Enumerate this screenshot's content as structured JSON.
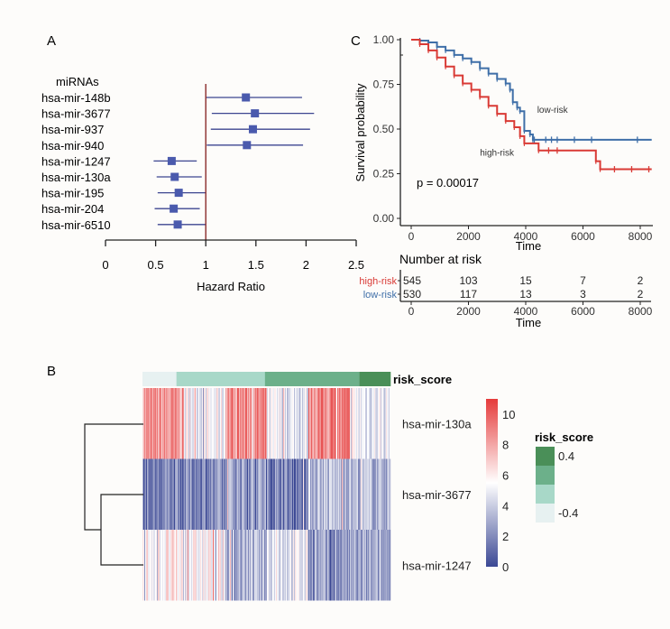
{
  "panels": {
    "a_label": "A",
    "b_label": "B",
    "c_label": "C"
  },
  "chart_data": [
    {
      "id": "forest",
      "type": "scatter",
      "subtype": "forest-plot",
      "header": "miRNAs",
      "xlabel": "Hazard Ratio",
      "xlim": [
        0,
        2.5
      ],
      "xticks": [
        0,
        0.5,
        1,
        1.5,
        2,
        2.5
      ],
      "xtick_labels": [
        "0",
        "0.5",
        "1",
        "1.5",
        "2",
        "2.5"
      ],
      "reference_line": 1,
      "colors": {
        "point": "#4a5aad",
        "ci": "#3d4690",
        "reference": "#8b2a2a"
      },
      "rows": [
        {
          "label": "hsa-mir-148b",
          "hr": 1.4,
          "lower": 1.0,
          "upper": 1.96
        },
        {
          "label": "hsa-mir-3677",
          "hr": 1.49,
          "lower": 1.06,
          "upper": 2.08
        },
        {
          "label": "hsa-mir-937",
          "hr": 1.47,
          "lower": 1.05,
          "upper": 2.04
        },
        {
          "label": "hsa-mir-940",
          "hr": 1.41,
          "lower": 1.01,
          "upper": 1.97
        },
        {
          "label": "hsa-mir-1247",
          "hr": 0.66,
          "lower": 0.48,
          "upper": 0.91
        },
        {
          "label": "hsa-mir-130a",
          "hr": 0.69,
          "lower": 0.51,
          "upper": 0.96
        },
        {
          "label": "hsa-mir-195",
          "hr": 0.73,
          "lower": 0.52,
          "upper": 1.0
        },
        {
          "label": "hsa-mir-204",
          "hr": 0.68,
          "lower": 0.49,
          "upper": 0.94
        },
        {
          "label": "hsa-mir-6510",
          "hr": 0.72,
          "lower": 0.52,
          "upper": 1.0
        }
      ]
    },
    {
      "id": "km",
      "type": "line",
      "subtype": "kaplan-meier",
      "xlabel": "Time",
      "ylabel": "Survival probability",
      "xlim": [
        -500,
        8400
      ],
      "ylim": [
        0,
        1
      ],
      "xticks": [
        0,
        2000,
        4000,
        6000,
        8000
      ],
      "yticks": [
        0,
        0.25,
        0.5,
        0.75,
        1.0
      ],
      "ytick_labels": [
        "0.00",
        "0.25",
        "0.50",
        "0.75",
        "1.00"
      ],
      "annotation": "p = 0.00017",
      "series": [
        {
          "name": "low-risk",
          "color": "#3f6fa8",
          "steps": [
            [
              0,
              1.0
            ],
            [
              300,
              0.995
            ],
            [
              600,
              0.985
            ],
            [
              900,
              0.96
            ],
            [
              1200,
              0.94
            ],
            [
              1500,
              0.915
            ],
            [
              1800,
              0.895
            ],
            [
              2100,
              0.875
            ],
            [
              2400,
              0.84
            ],
            [
              2700,
              0.81
            ],
            [
              3000,
              0.78
            ],
            [
              3300,
              0.755
            ],
            [
              3450,
              0.72
            ],
            [
              3550,
              0.65
            ],
            [
              3700,
              0.62
            ],
            [
              3800,
              0.6
            ],
            [
              3950,
              0.49
            ],
            [
              4150,
              0.47
            ],
            [
              4250,
              0.44
            ],
            [
              8400,
              0.44
            ]
          ],
          "censor_times": [
            4300,
            4700,
            4900,
            5100,
            5700,
            6300,
            7900
          ]
        },
        {
          "name": "high-risk",
          "color": "#d93a35",
          "steps": [
            [
              0,
              1.0
            ],
            [
              300,
              0.975
            ],
            [
              600,
              0.94
            ],
            [
              900,
              0.9
            ],
            [
              1200,
              0.85
            ],
            [
              1500,
              0.8
            ],
            [
              1800,
              0.755
            ],
            [
              2100,
              0.72
            ],
            [
              2400,
              0.68
            ],
            [
              2700,
              0.63
            ],
            [
              3000,
              0.585
            ],
            [
              3300,
              0.545
            ],
            [
              3600,
              0.51
            ],
            [
              3800,
              0.46
            ],
            [
              3950,
              0.42
            ],
            [
              4450,
              0.38
            ],
            [
              6450,
              0.32
            ],
            [
              6600,
              0.275
            ],
            [
              8400,
              0.275
            ]
          ],
          "censor_times": [
            4800,
            5100,
            7100,
            7700,
            8300
          ]
        }
      ],
      "curve_labels": [
        {
          "text": "low-risk",
          "x": 4400,
          "y": 0.59
        },
        {
          "text": "high-risk",
          "x": 2400,
          "y": 0.35
        }
      ]
    },
    {
      "id": "risk_table",
      "type": "table",
      "title": "Number at risk",
      "xlabel": "Time",
      "time_points": [
        0,
        2000,
        4000,
        6000,
        8000
      ],
      "rows": [
        {
          "name": "high-risk",
          "color": "#d93a35",
          "values": [
            545,
            103,
            15,
            7,
            2
          ]
        },
        {
          "name": "low-risk",
          "color": "#3f6fa8",
          "values": [
            530,
            117,
            13,
            3,
            2
          ]
        }
      ]
    },
    {
      "id": "heatmap",
      "type": "heatmap",
      "rows": [
        "hsa-mir-130a",
        "hsa-mir-3677",
        "hsa-mir-1247"
      ],
      "annotation_label": "risk_score",
      "risk_score_groups": [
        {
          "level": -0.4,
          "fraction": 0.137,
          "color": "#e7f1f1"
        },
        {
          "level": -0.13,
          "fraction": 0.357,
          "color": "#a8d8c8"
        },
        {
          "level": 0.13,
          "fraction": 0.381,
          "color": "#6cb08a"
        },
        {
          "level": 0.4,
          "fraction": 0.125,
          "color": "#4a8f58"
        }
      ],
      "row_pattern_means": {
        "hsa-mir-130a": [
          8.2,
          5.2,
          8.6,
          4.8,
          8.8,
          5.0
        ],
        "hsa-mir-3677": [
          1.6,
          2.0,
          2.8,
          1.8,
          3.6,
          3.4
        ],
        "hsa-mir-1247": [
          5.8,
          5.4,
          3.2,
          4.8,
          2.4,
          2.6
        ]
      },
      "colorbar": {
        "min": 0,
        "max": 11,
        "mid": 5.5,
        "ticks": [
          0,
          2,
          4,
          6,
          8,
          10
        ],
        "low_color": "#3b4894",
        "mid_color": "#ffffff",
        "high_color": "#e53b3b"
      },
      "legend": {
        "title": "risk_score",
        "labels": [
          "0.4",
          "-0.4"
        ],
        "colors": [
          "#4a8f58",
          "#6cb08a",
          "#a8d8c8",
          "#e7f1f1"
        ]
      }
    }
  ]
}
